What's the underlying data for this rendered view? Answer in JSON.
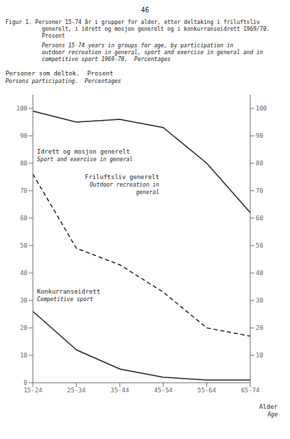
{
  "chart_data": {
    "type": "line",
    "page_number": "46",
    "figure_number": "Figur 1.",
    "title": "Personer 15-74 år i grupper for alder, etter deltaking i friluftsliv\n           generelt, i idrett og mosjon generelt og i konkurranseidrett 1969/70.\n           Prosent",
    "subtitle": "           Persons 15-74 years in groups for age, by participation in\n           outdoor recreation in general, sport and exercise in general and in\n           competitive sport 1969-70.  Percentages",
    "y_label": "Personer som deltok.  Prosent",
    "y_label_italic": "Persons participating.  Percentages",
    "x_label": "Alder",
    "x_label_italic": "Age",
    "categories": [
      "15-24",
      "25-34",
      "35-44",
      "45-54",
      "55-64",
      "65-74"
    ],
    "ylim": [
      0,
      105
    ],
    "yticks": [
      0,
      10,
      20,
      30,
      40,
      50,
      60,
      70,
      80,
      90,
      100
    ],
    "y2lim": [
      0,
      105
    ],
    "y2ticks": [
      10,
      20,
      30,
      40,
      50,
      60,
      70,
      80,
      90,
      100
    ],
    "grid": false,
    "series": [
      {
        "name": "Friluftsliv generelt",
        "name_italic": "Outdoor recreation in\n  general",
        "color": "#1a1a1a",
        "line_style": "solid",
        "values": [
          99,
          95,
          96,
          93,
          80,
          62
        ]
      },
      {
        "name": "Idrett og mosjon generelt",
        "name_italic": "Sport and exercise in general",
        "color": "#1a1a1a",
        "line_style": "dashed",
        "values": [
          76,
          49,
          43,
          33,
          20,
          17
        ]
      },
      {
        "name": "Konkurranseidrett",
        "name_italic": "Competitive sport",
        "color": "#1a1a1a",
        "line_style": "solid",
        "values": [
          26,
          12,
          5,
          2,
          1,
          1
        ]
      }
    ]
  }
}
